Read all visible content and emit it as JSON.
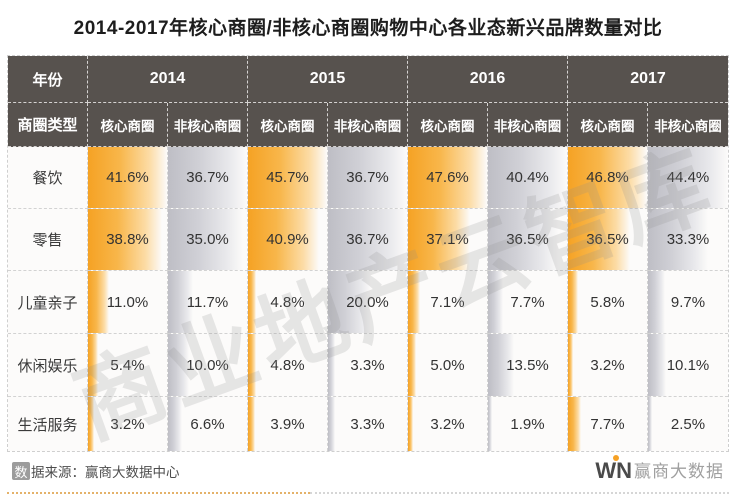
{
  "title": "2014-2017年核心商圈/非核心商圈购物中心各业态新兴品牌数量对比",
  "watermark": "商业地产云智库",
  "colors": {
    "core_bar": "#f5a224",
    "noncore_bar": "#bebec5",
    "header_bg": "#57524e",
    "accent_orange": "#f6a125"
  },
  "table": {
    "year_header_label": "年份",
    "type_header_label": "商圈类型",
    "years": [
      "2014",
      "2015",
      "2016",
      "2017"
    ],
    "core_label": "核心商圈",
    "noncore_label": "非核心商圈"
  },
  "chart_data": {
    "type": "table",
    "title": "2014-2017年核心商圈/非核心商圈购物中心各业态新兴品牌数量对比",
    "columns": [
      "2014 核心商圈",
      "2014 非核心商圈",
      "2015 核心商圈",
      "2015 非核心商圈",
      "2016 核心商圈",
      "2016 非核心商圈",
      "2017 核心商圈",
      "2017 非核心商圈"
    ],
    "unit": "%",
    "rows": [
      {
        "label": "餐饮",
        "values": [
          41.6,
          36.7,
          45.7,
          36.7,
          47.6,
          40.4,
          46.8,
          44.4
        ]
      },
      {
        "label": "零售",
        "values": [
          38.8,
          35.0,
          40.9,
          36.7,
          37.1,
          36.5,
          36.5,
          33.3
        ]
      },
      {
        "label": "儿童亲子",
        "values": [
          11.0,
          11.7,
          4.8,
          20.0,
          7.1,
          7.7,
          5.8,
          9.7
        ]
      },
      {
        "label": "休闲娱乐",
        "values": [
          5.4,
          10.0,
          4.8,
          3.3,
          5.0,
          13.5,
          3.2,
          10.1
        ]
      },
      {
        "label": "生活服务",
        "values": [
          3.2,
          6.6,
          3.9,
          3.3,
          3.2,
          1.9,
          7.7,
          2.5
        ]
      }
    ],
    "bar_note": "cell data-bars scaled to each column maximum; orange = 核心商圈, gray = 非核心商圈"
  },
  "footer": {
    "source_box_char": "数",
    "source_rest": "据来源：赢商大数据中心",
    "logo_w": "W",
    "logo_n": "N",
    "logo_text": "赢商大数据"
  }
}
